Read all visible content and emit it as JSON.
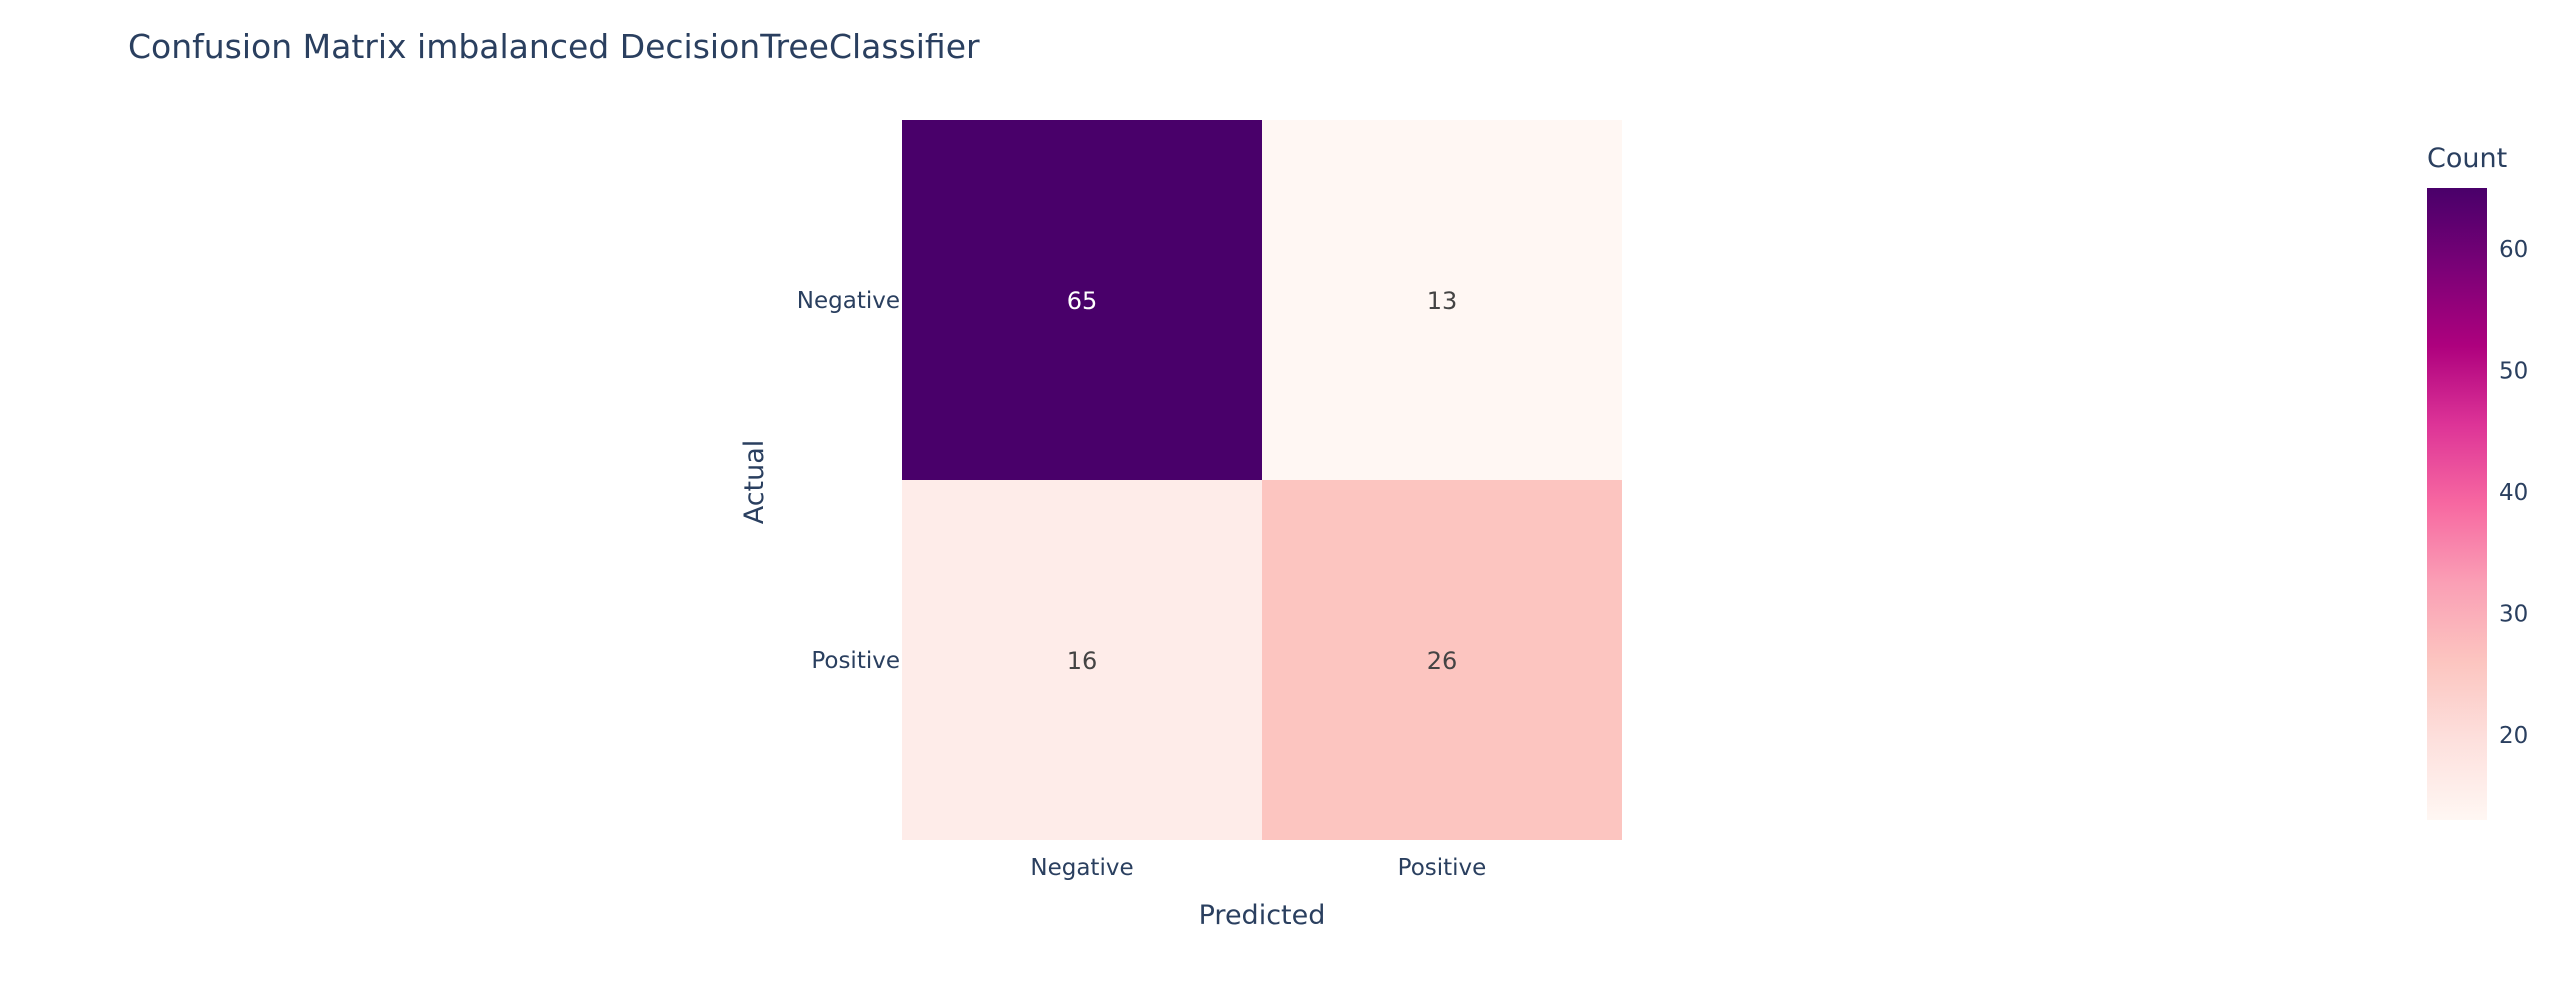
{
  "chart_data": {
    "type": "heatmap",
    "title": "Confusion Matrix imbalanced DecisionTreeClassifier",
    "xlabel": "Predicted",
    "ylabel": "Actual",
    "x_categories": [
      "Negative",
      "Positive"
    ],
    "y_categories": [
      "Negative",
      "Positive"
    ],
    "z": [
      [
        65,
        13
      ],
      [
        16,
        26
      ]
    ],
    "colorbar": {
      "title": "Count",
      "range": [
        13,
        65
      ],
      "ticks": [
        20,
        30,
        40,
        50,
        60
      ],
      "colorscale": [
        "#fff7f3",
        "#fde0dd",
        "#fcc5c0",
        "#fa9fb5",
        "#f768a1",
        "#dd3497",
        "#ae017e",
        "#7a0177",
        "#49006a"
      ]
    },
    "legend": "none",
    "grid": false
  }
}
